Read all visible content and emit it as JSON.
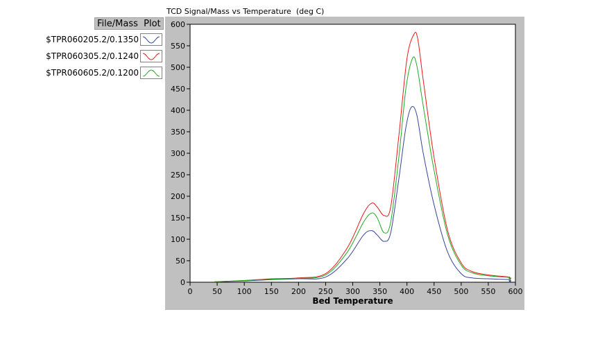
{
  "legend": {
    "header": "File/Mass  Plot",
    "items": [
      {
        "label": "$TPR060205.2/0.1350",
        "color": "#33449a"
      },
      {
        "label": "$TPR060305.2/0.1240",
        "color": "#e81818"
      },
      {
        "label": "$TPR060605.2/0.1200",
        "color": "#22aa22"
      }
    ]
  },
  "chart_data": {
    "type": "line",
    "title": "TCD Signal/Mass vs Temperature  (deg C)",
    "xlabel": "Bed Temperature",
    "ylabel": "",
    "xlim": [
      0,
      600
    ],
    "ylim": [
      0,
      600
    ],
    "xticks": [
      0,
      50,
      100,
      150,
      200,
      250,
      300,
      350,
      400,
      450,
      500,
      550,
      600
    ],
    "yticks": [
      0,
      50,
      100,
      150,
      200,
      250,
      300,
      350,
      400,
      450,
      500,
      550,
      600
    ],
    "grid": false,
    "series": [
      {
        "name": "$TPR060205.2/0.1350",
        "color": "#33449a",
        "x": [
          45,
          100,
          150,
          200,
          250,
          290,
          320,
          335,
          345,
          358,
          370,
          385,
          398,
          408,
          418,
          430,
          450,
          475,
          500,
          520,
          550,
          590
        ],
        "y": [
          1,
          3,
          6,
          8,
          12,
          55,
          110,
          120,
          110,
          95,
          115,
          240,
          360,
          407,
          390,
          300,
          180,
          70,
          20,
          10,
          8,
          6
        ]
      },
      {
        "name": "$TPR060305.2/0.1240",
        "color": "#e81818",
        "x": [
          45,
          100,
          150,
          200,
          250,
          290,
          320,
          335,
          345,
          358,
          370,
          385,
          400,
          413,
          420,
          430,
          450,
          475,
          500,
          520,
          550,
          590
        ],
        "y": [
          1,
          4,
          8,
          10,
          20,
          80,
          160,
          184,
          175,
          155,
          175,
          340,
          520,
          577,
          565,
          470,
          290,
          120,
          45,
          25,
          17,
          12
        ]
      },
      {
        "name": "$TPR060605.2/0.1200",
        "color": "#22aa22",
        "x": [
          45,
          100,
          150,
          200,
          250,
          290,
          320,
          335,
          345,
          358,
          370,
          385,
          398,
          410,
          418,
          430,
          450,
          475,
          500,
          520,
          550,
          590
        ],
        "y": [
          1,
          4,
          7,
          9,
          17,
          70,
          140,
          161,
          150,
          115,
          140,
          290,
          450,
          520,
          505,
          410,
          260,
          110,
          40,
          22,
          15,
          11
        ]
      }
    ]
  }
}
